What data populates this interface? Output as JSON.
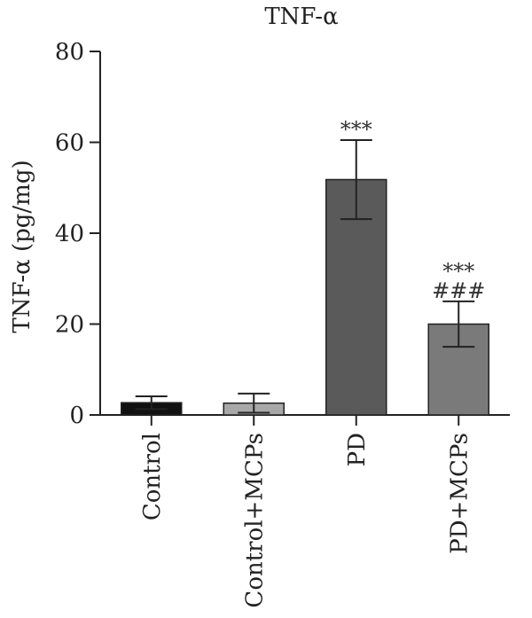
{
  "chart_data": {
    "type": "bar",
    "title": "TNF-α",
    "ylabel": "TNF-α (pg/mg)",
    "xlabel": "",
    "ylim": [
      0,
      80
    ],
    "yticks": [
      0,
      20,
      40,
      60,
      80
    ],
    "grid": false,
    "categories": [
      "Control",
      "Control+MCPs",
      "PD",
      "PD+MCPs"
    ],
    "values": [
      2.7,
      2.6,
      51.8,
      20.0
    ],
    "errors": [
      1.4,
      2.1,
      8.7,
      5.0
    ],
    "annotations": [
      {
        "category": "PD",
        "lines": [
          "***"
        ]
      },
      {
        "category": "PD+MCPs",
        "lines": [
          "***",
          "###"
        ]
      }
    ],
    "colors": [
      "#111111",
      "#a8a8a8",
      "#5a5a5a",
      "#7a7a7a"
    ]
  }
}
